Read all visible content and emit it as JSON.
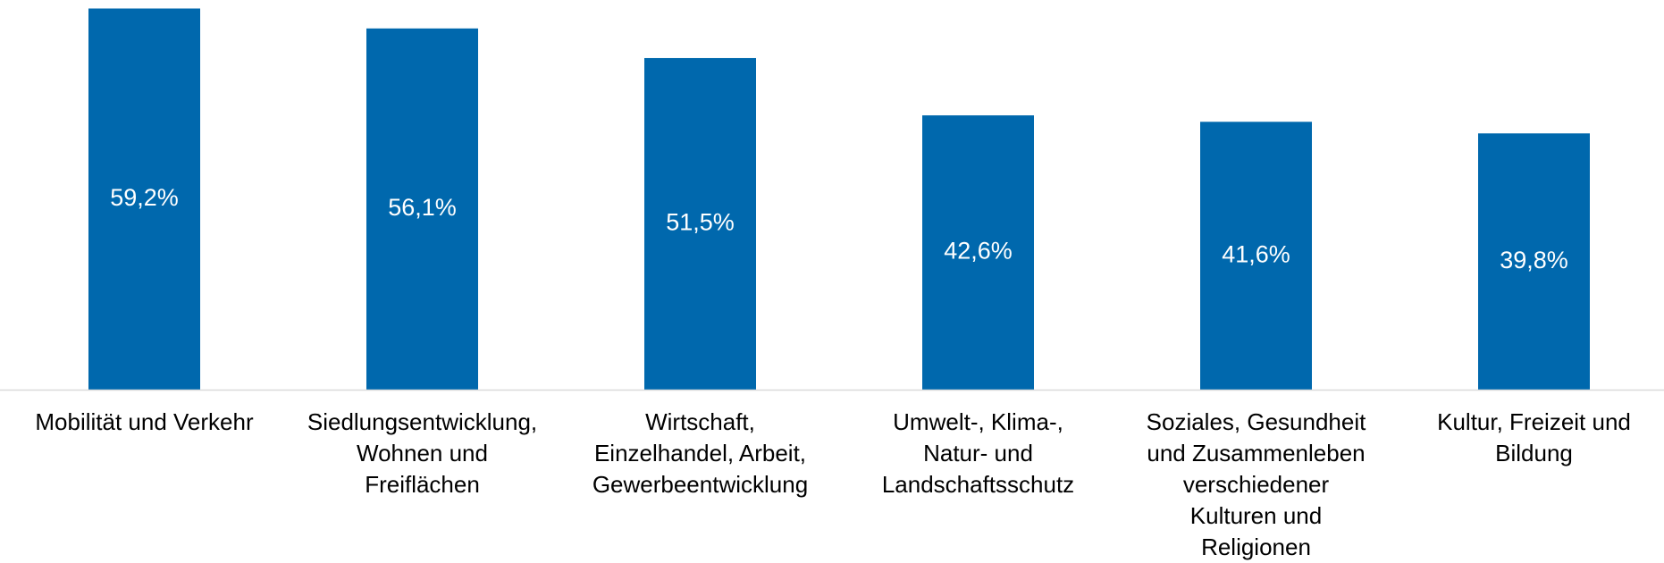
{
  "chart_data": {
    "type": "bar",
    "categories": [
      "Mobilität und Verkehr",
      "Siedlungsentwicklung,\nWohnen und\nFreiflächen",
      "Wirtschaft,\nEinzelhandel, Arbeit,\nGewerbeentwicklung",
      "Umwelt-, Klima-,\nNatur- und\nLandschaftsschutz",
      "Soziales, Gesundheit\nund Zusammenleben\nverschiedener\nKulturen und\nReligionen",
      "Kultur, Freizeit und\nBildung"
    ],
    "values": [
      59.2,
      56.1,
      51.5,
      42.6,
      41.6,
      39.8
    ],
    "value_labels": [
      "59,2%",
      "56,1%",
      "51,5%",
      "42,6%",
      "41,6%",
      "39,8%"
    ],
    "color": "#0068ad"
  }
}
